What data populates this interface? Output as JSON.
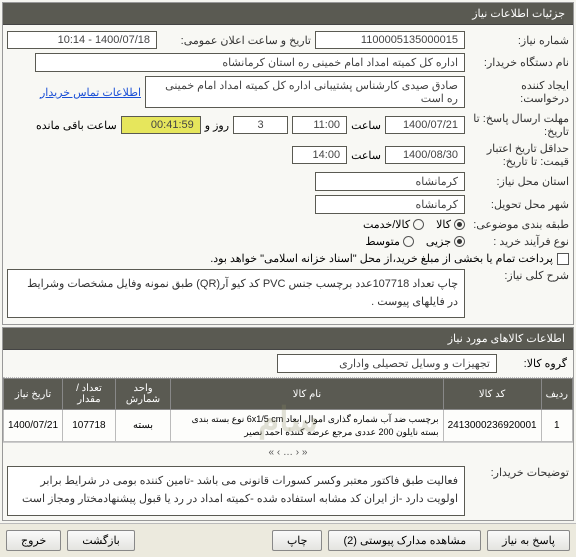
{
  "panel1": {
    "title": "جزئیات اطلاعات نیاز",
    "need_no_lbl": "شماره نیاز:",
    "need_no": "1100005135000015",
    "announce_lbl": "تاریخ و ساعت اعلان عمومی:",
    "announce": "1400/07/18 - 10:14",
    "buyer_lbl": "نام دستگاه خریدار:",
    "buyer": "اداره کل کمیته امداد امام خمینی ره استان کرمانشاه",
    "requester_lbl": "ایجاد کننده درخواست:",
    "requester": "صادق صیدی کارشناس پشتیبانی اداره کل کمیته امداد امام خمینی ره است",
    "contact_link": "اطلاعات تماس خریدار",
    "deadline_lbl": "مهلت ارسال پاسخ: تا تاریخ:",
    "deadline_date": "1400/07/21",
    "time_lbl": "ساعت",
    "deadline_time": "11:00",
    "days_lbl": "روز و",
    "days": "3",
    "remain_lbl": "ساعت باقی مانده",
    "remain": "00:41:59",
    "validity_lbl": "حداقل تاریخ اعتبار قیمت: تا تاریخ:",
    "validity_date": "1400/08/30",
    "validity_time": "14:00",
    "need_loc_lbl": "استان محل نیاز:",
    "need_loc": "کرمانشاه",
    "deliver_loc_lbl": "شهر محل تحویل:",
    "deliver_loc": "کرمانشاه",
    "subject_class_lbl": "طبقه بندی موضوعی:",
    "radios": {
      "kala": "کالا",
      "khadamat": "کالا/خدمت"
    },
    "buy_type_lbl": "نوع فرآیند خرید :",
    "buy_types": {
      "joz": "جزیی",
      "motavaset": "متوسط"
    },
    "partial_pay": "پرداخت تمام یا بخشی از مبلغ خرید،از محل \"اسناد خزانه اسلامی\" خواهد بود.",
    "desc_lbl": "شرح کلی نیاز:",
    "desc": "چاپ تعداد 107718عدد برچسب جنس PVC  کد کیو آر(QR)  طبق نمونه وفایل مشخصات وشرایط در فایلهای پیوست ."
  },
  "panel2": {
    "title": "اطلاعات کالاهای مورد نیاز",
    "group_lbl": "گروه کالا:",
    "group": "تجهیزات و وسایل تحصیلی واداری",
    "cols": [
      "ردیف",
      "کد کالا",
      "نام کالا",
      "واحد شمارش",
      "تعداد / مقدار",
      "تاریخ نیاز"
    ],
    "rows": [
      [
        "1",
        "2413000236920001",
        "برچسب ضد آب شماره گذاری اموال ابعاد 6x1/5 cm نوع بسته بندی بسته نایلون 200 عددی مرجع عرضه کننده احمد نصیر",
        "بسته",
        "107718",
        "1400/07/21"
      ]
    ],
    "wmk": "سام",
    "buyer_note_lbl": "توضیحات خریدار:",
    "buyer_note": "فعالیت طبق فاکتور معتبر وکسر کسورات قانونی می باشد -تامین کننده بومی در شرایط برابر اولویت دارد -از ایران کد مشابه استفاده شده -کمیته امداد در رد یا قبول پیشنهادمختار ومجاز است"
  },
  "buttons": {
    "reply": "پاسخ به نیاز",
    "attach": "مشاهده مدارک پیوستی (2)",
    "print": "چاپ",
    "back": "بازگشت",
    "exit": "خروج"
  }
}
